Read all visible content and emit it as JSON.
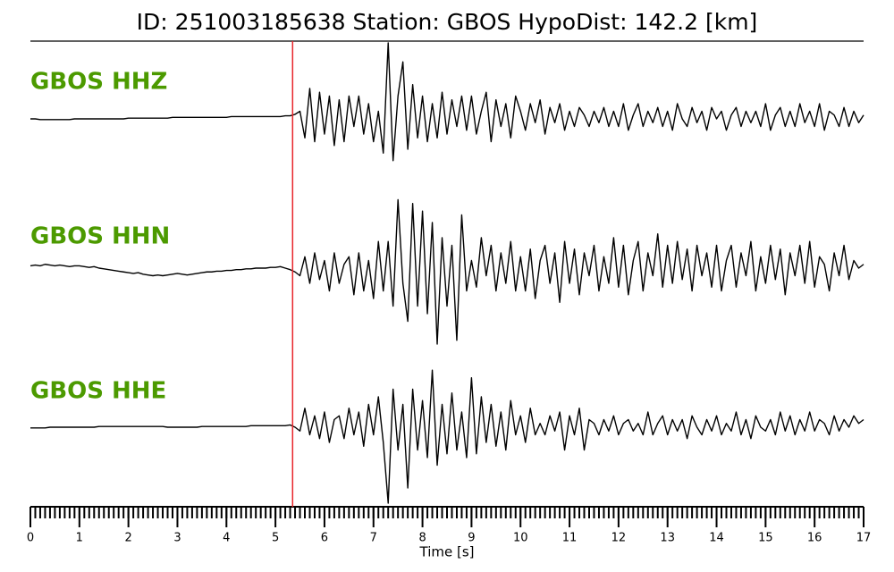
{
  "chart_data": {
    "type": "line",
    "title": "ID: 251003185638   Station: GBOS   HypoDist:   142.2 [km]",
    "xlabel": "Time [s]",
    "xlim": [
      0,
      17
    ],
    "xticks": [
      0,
      1,
      2,
      3,
      4,
      5,
      6,
      7,
      8,
      9,
      10,
      11,
      12,
      13,
      14,
      15,
      16,
      17
    ],
    "minor_tick_interval": 0.1,
    "ylim": [
      -1,
      1
    ],
    "label_color": "#4c9a00",
    "pick_time": 5.35,
    "pick_color": "#e8262a",
    "x": [
      0,
      0.1,
      0.2,
      0.3,
      0.4,
      0.5,
      0.6,
      0.7,
      0.8,
      0.9,
      1,
      1.1,
      1.2,
      1.3,
      1.4,
      1.5,
      1.6,
      1.7,
      1.8,
      1.9,
      2,
      2.1,
      2.2,
      2.3,
      2.4,
      2.5,
      2.6,
      2.7,
      2.8,
      2.9,
      3,
      3.1,
      3.2,
      3.3,
      3.4,
      3.5,
      3.6,
      3.7,
      3.8,
      3.9,
      4,
      4.1,
      4.2,
      4.3,
      4.4,
      4.5,
      4.6,
      4.7,
      4.8,
      4.9,
      5,
      5.1,
      5.2,
      5.3,
      5.4,
      5.5,
      5.6,
      5.7,
      5.8,
      5.9,
      6,
      6.1,
      6.2,
      6.3,
      6.4,
      6.5,
      6.6,
      6.7,
      6.8,
      6.9,
      7,
      7.1,
      7.2,
      7.3,
      7.4,
      7.5,
      7.6,
      7.7,
      7.8,
      7.9,
      8,
      8.1,
      8.2,
      8.3,
      8.4,
      8.5,
      8.6,
      8.7,
      8.8,
      8.9,
      9,
      9.1,
      9.2,
      9.3,
      9.4,
      9.5,
      9.6,
      9.7,
      9.8,
      9.9,
      10,
      10.1,
      10.2,
      10.3,
      10.4,
      10.5,
      10.6,
      10.7,
      10.8,
      10.9,
      11,
      11.1,
      11.2,
      11.3,
      11.4,
      11.5,
      11.6,
      11.7,
      11.8,
      11.9,
      12,
      12.1,
      12.2,
      12.3,
      12.4,
      12.5,
      12.6,
      12.7,
      12.8,
      12.9,
      13,
      13.1,
      13.2,
      13.3,
      13.4,
      13.5,
      13.6,
      13.7,
      13.8,
      13.9,
      14,
      14.1,
      14.2,
      14.3,
      14.4,
      14.5,
      14.6,
      14.7,
      14.8,
      14.9,
      15,
      15.1,
      15.2,
      15.3,
      15.4,
      15.5,
      15.6,
      15.7,
      15.8,
      15.9,
      16,
      16.1,
      16.2,
      16.3,
      16.4,
      16.5,
      16.6,
      16.7,
      16.8,
      16.9,
      17
    ],
    "series": [
      {
        "name": "GBOS HHZ",
        "color": "#000000",
        "values": [
          0,
          0,
          -0.01,
          -0.01,
          -0.01,
          -0.01,
          -0.01,
          -0.01,
          -0.01,
          0,
          0,
          0,
          0,
          0,
          0,
          0,
          0,
          0,
          0,
          0,
          0.01,
          0.01,
          0.01,
          0.01,
          0.01,
          0.01,
          0.01,
          0.01,
          0.01,
          0.02,
          0.02,
          0.02,
          0.02,
          0.02,
          0.02,
          0.02,
          0.02,
          0.02,
          0.02,
          0.02,
          0.02,
          0.03,
          0.03,
          0.03,
          0.03,
          0.03,
          0.03,
          0.03,
          0.03,
          0.03,
          0.03,
          0.03,
          0.04,
          0.04,
          0.06,
          0.1,
          -0.25,
          0.4,
          -0.3,
          0.35,
          -0.2,
          0.3,
          -0.35,
          0.25,
          -0.3,
          0.3,
          -0.1,
          0.3,
          -0.2,
          0.2,
          -0.3,
          0.1,
          -0.45,
          1.0,
          -0.55,
          0.3,
          0.75,
          -0.4,
          0.45,
          -0.25,
          0.3,
          -0.3,
          0.2,
          -0.25,
          0.35,
          -0.2,
          0.25,
          -0.1,
          0.3,
          -0.15,
          0.3,
          -0.2,
          0.1,
          0.35,
          -0.3,
          0.25,
          -0.1,
          0.2,
          -0.25,
          0.3,
          0.1,
          -0.15,
          0.2,
          -0.05,
          0.25,
          -0.2,
          0.15,
          -0.05,
          0.2,
          -0.15,
          0.1,
          -0.1,
          0.15,
          0.05,
          -0.1,
          0.1,
          -0.05,
          0.15,
          -0.1,
          0.1,
          -0.1,
          0.2,
          -0.15,
          0.05,
          0.2,
          -0.1,
          0.1,
          -0.05,
          0.15,
          -0.1,
          0.1,
          -0.15,
          0.2,
          0.0,
          -0.1,
          0.15,
          -0.05,
          0.1,
          -0.15,
          0.15,
          0.0,
          0.1,
          -0.15,
          0.05,
          0.15,
          -0.1,
          0.1,
          -0.05,
          0.1,
          -0.1,
          0.2,
          -0.15,
          0.05,
          0.15,
          -0.1,
          0.1,
          -0.1,
          0.2,
          -0.05,
          0.1,
          -0.1,
          0.2,
          -0.15,
          0.1,
          0.05,
          -0.1,
          0.15,
          -0.1,
          0.1,
          -0.05,
          0.05
        ]
      },
      {
        "name": "GBOS HHN",
        "color": "#000000",
        "values": [
          0.03,
          0.04,
          0.03,
          0.05,
          0.04,
          0.03,
          0.04,
          0.03,
          0.02,
          0.03,
          0.03,
          0.02,
          0.01,
          0.02,
          0.0,
          -0.01,
          -0.02,
          -0.03,
          -0.04,
          -0.05,
          -0.06,
          -0.07,
          -0.06,
          -0.08,
          -0.09,
          -0.1,
          -0.09,
          -0.1,
          -0.09,
          -0.08,
          -0.07,
          -0.08,
          -0.09,
          -0.08,
          -0.07,
          -0.06,
          -0.05,
          -0.05,
          -0.04,
          -0.04,
          -0.03,
          -0.03,
          -0.02,
          -0.02,
          -0.01,
          -0.01,
          0.0,
          0.0,
          0.0,
          0.01,
          0.01,
          0.02,
          0.0,
          -0.02,
          -0.05,
          -0.1,
          0.15,
          -0.2,
          0.2,
          -0.15,
          0.1,
          -0.3,
          0.2,
          -0.2,
          0.05,
          0.15,
          -0.35,
          0.2,
          -0.3,
          0.1,
          -0.4,
          0.35,
          -0.3,
          0.35,
          -0.5,
          0.9,
          -0.2,
          -0.7,
          0.85,
          -0.5,
          0.75,
          -0.6,
          0.6,
          -1.0,
          0.4,
          -0.5,
          0.3,
          -0.95,
          0.7,
          -0.3,
          0.1,
          -0.25,
          0.4,
          -0.1,
          0.3,
          -0.3,
          0.2,
          -0.2,
          0.35,
          -0.3,
          0.15,
          -0.3,
          0.25,
          -0.4,
          0.1,
          0.3,
          -0.2,
          0.2,
          -0.45,
          0.35,
          -0.2,
          0.25,
          -0.35,
          0.2,
          -0.1,
          0.3,
          -0.3,
          0.15,
          -0.2,
          0.4,
          -0.25,
          0.3,
          -0.35,
          0.1,
          0.35,
          -0.3,
          0.2,
          -0.1,
          0.45,
          -0.25,
          0.3,
          -0.2,
          0.35,
          -0.15,
          0.25,
          -0.3,
          0.3,
          -0.1,
          0.2,
          -0.25,
          0.3,
          -0.3,
          0.1,
          0.3,
          -0.25,
          0.2,
          -0.1,
          0.35,
          -0.3,
          0.15,
          -0.2,
          0.3,
          -0.15,
          0.25,
          -0.35,
          0.2,
          -0.1,
          0.3,
          -0.2,
          0.35,
          -0.25,
          0.15,
          0.05,
          -0.3,
          0.2,
          -0.1,
          0.3,
          -0.15,
          0.1,
          0.0,
          0.05
        ]
      },
      {
        "name": "GBOS HHE",
        "color": "#000000",
        "values": [
          -0.01,
          -0.01,
          -0.01,
          -0.01,
          0,
          0,
          0,
          0,
          0,
          0,
          0,
          0,
          0,
          0,
          0.01,
          0.01,
          0.01,
          0.01,
          0.01,
          0.01,
          0.01,
          0.01,
          0.01,
          0.01,
          0.01,
          0.01,
          0.01,
          0.01,
          0.0,
          0.0,
          0,
          0,
          0,
          0,
          0,
          0.01,
          0.01,
          0.01,
          0.01,
          0.01,
          0.01,
          0.01,
          0.01,
          0.01,
          0.01,
          0.02,
          0.02,
          0.02,
          0.02,
          0.02,
          0.02,
          0.02,
          0.02,
          0.03,
          0.0,
          -0.05,
          0.25,
          -0.1,
          0.15,
          -0.15,
          0.2,
          -0.2,
          0.1,
          0.15,
          -0.15,
          0.25,
          -0.1,
          0.2,
          -0.25,
          0.3,
          -0.1,
          0.4,
          -0.2,
          -1.0,
          0.5,
          -0.3,
          0.3,
          -0.8,
          0.5,
          -0.3,
          0.35,
          -0.4,
          0.75,
          -0.5,
          0.3,
          -0.35,
          0.45,
          -0.3,
          0.2,
          -0.4,
          0.65,
          -0.35,
          0.4,
          -0.2,
          0.3,
          -0.25,
          0.2,
          -0.3,
          0.35,
          -0.1,
          0.15,
          -0.2,
          0.25,
          -0.1,
          0.05,
          -0.1,
          0.15,
          -0.05,
          0.2,
          -0.3,
          0.15,
          -0.1,
          0.25,
          -0.3,
          0.1,
          0.05,
          -0.1,
          0.1,
          -0.05,
          0.15,
          -0.1,
          0.05,
          0.1,
          -0.05,
          0.05,
          -0.1,
          0.2,
          -0.1,
          0.05,
          0.15,
          -0.1,
          0.1,
          -0.05,
          0.1,
          -0.15,
          0.15,
          0.0,
          -0.1,
          0.1,
          -0.05,
          0.15,
          -0.1,
          0.05,
          -0.05,
          0.2,
          -0.1,
          0.1,
          -0.15,
          0.15,
          0.0,
          -0.05,
          0.1,
          -0.1,
          0.2,
          -0.05,
          0.15,
          -0.1,
          0.1,
          -0.05,
          0.2,
          -0.05,
          0.1,
          0.05,
          -0.1,
          0.15,
          -0.05,
          0.1,
          0.0,
          0.15,
          0.05,
          0.1
        ]
      }
    ]
  }
}
